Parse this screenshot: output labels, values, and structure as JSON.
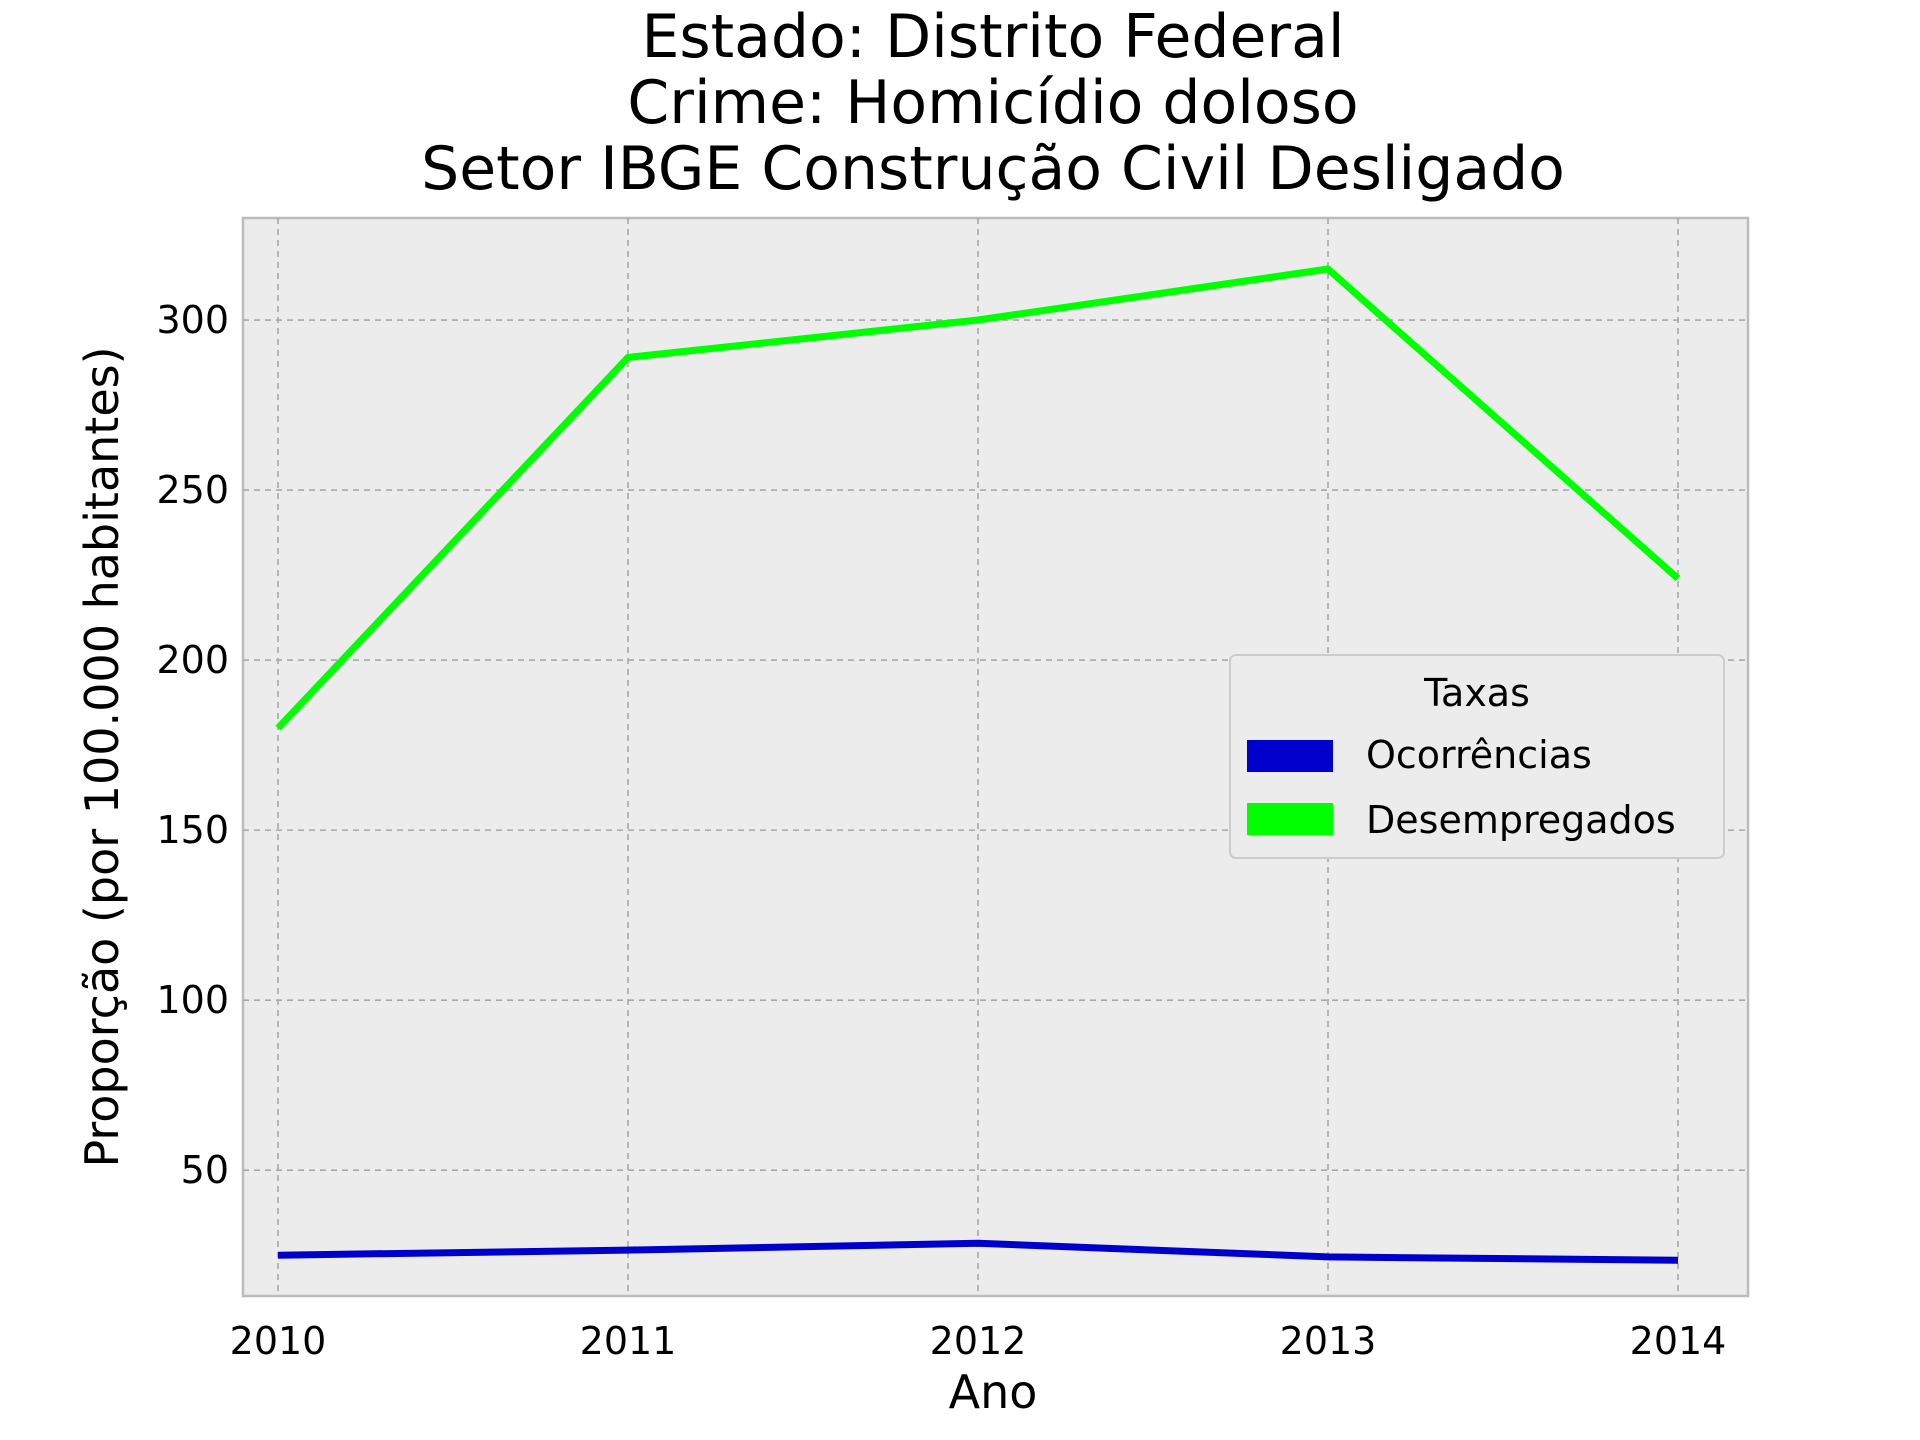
{
  "chart_data": {
    "type": "line",
    "title_lines": [
      "Estado: Distrito Federal",
      "Crime: Homicídio doloso",
      "Setor IBGE  Construção Civil   Desligado"
    ],
    "xlabel": "Ano",
    "ylabel": "Proporção (por 100.000 habitantes)",
    "x": [
      2010,
      2011,
      2012,
      2013,
      2014
    ],
    "x_tick_labels": [
      "2010",
      "2011",
      "2012",
      "2013",
      "2014"
    ],
    "y_ticks": [
      50,
      100,
      150,
      200,
      250,
      300
    ],
    "y_tick_labels": [
      "50",
      "100",
      "150",
      "200",
      "250",
      "300"
    ],
    "xlim": [
      2009.9,
      2014.2
    ],
    "ylim": [
      13,
      330
    ],
    "grid": true,
    "series": [
      {
        "name": "Ocorrências",
        "color": "#0000cc",
        "values": [
          25,
          26.5,
          28.5,
          24.5,
          23.5
        ]
      },
      {
        "name": "Desempregados",
        "color": "#00ff00",
        "values": [
          180,
          289,
          300,
          315,
          224
        ]
      }
    ],
    "legend": {
      "title": "Taxas",
      "position": "center-right"
    },
    "plot_background": "#ececec"
  }
}
